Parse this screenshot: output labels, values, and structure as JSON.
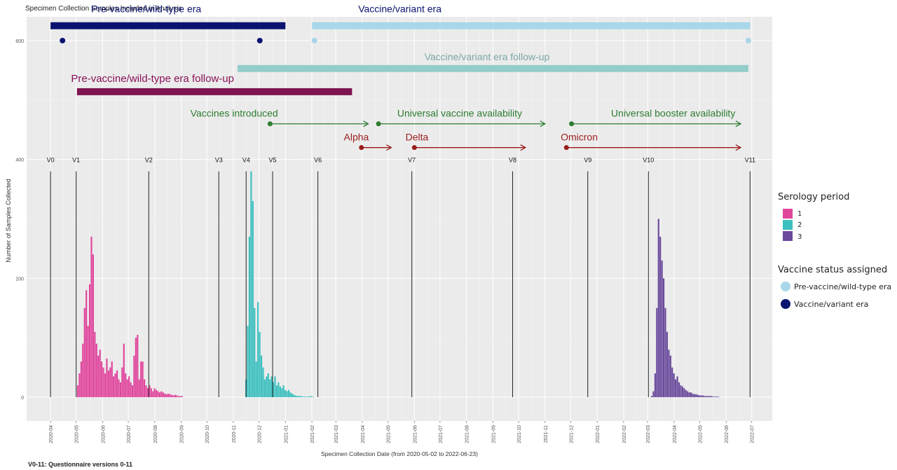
{
  "chart_data": {
    "type": "bar",
    "title": "Specimen Collection Samples Included in Analysis",
    "xlabel": "Specimen Collection Date (from 2020-05-02 to 2022-06-23)",
    "ylabel": "Number of Samples Collected",
    "footnote": "V0-11: Questionnaire versions 0-11",
    "grid": true,
    "ylim": [
      -40,
      640
    ],
    "yticks": [
      0,
      200,
      400,
      600
    ],
    "xlim": [
      "2020-03-04",
      "2022-07-25"
    ],
    "xticks": [
      "2020-04",
      "2020-05",
      "2020-06",
      "2020-07",
      "2020-08",
      "2020-09",
      "2020-10",
      "2020-11",
      "2020-12",
      "2021-01",
      "2021-02",
      "2021-03",
      "2021-04",
      "2021-05",
      "2021-06",
      "2021-07",
      "2021-08",
      "2021-09",
      "2021-10",
      "2021-11",
      "2021-12",
      "2022-01",
      "2022-02",
      "2022-03",
      "2022-04",
      "2022-05",
      "2022-06",
      "2022-07"
    ],
    "legend": {
      "serology_title": "Serology period",
      "serology": [
        {
          "label": "1",
          "color": "#e0459c"
        },
        {
          "label": "2",
          "color": "#3cbfbf"
        },
        {
          "label": "3",
          "color": "#6a4a9c"
        }
      ],
      "vaccine_title": "Vaccine status assigned",
      "vaccine": [
        {
          "label": "Pre-vaccine/wild-type era",
          "color": "#a9d6ea"
        },
        {
          "label": "Vaccine/variant era",
          "color": "#0a1470"
        }
      ],
      "placement": "right"
    },
    "eras": [
      {
        "label": "Pre-vaccine/wild-type era",
        "start": "2020-04-01",
        "end": "2021-01-01",
        "y": 625,
        "color": "#0a1470",
        "label_color": "#0a1470"
      },
      {
        "label": "Vaccine/variant era",
        "start": "2021-02-01",
        "end": "2022-06-29",
        "y": 625,
        "color": "#a9d6ea",
        "label_color": "#0a1470"
      },
      {
        "label": "Vaccine/variant era follow-up",
        "start": "2020-11-06",
        "end": "2022-06-27",
        "y": 553,
        "color": "#93cdca",
        "label_color": "#7aa7a5"
      },
      {
        "label": "Pre-vaccine/wild-type era follow-up",
        "start": "2020-05-02",
        "end": "2021-03-20",
        "y": 514,
        "color": "#7e1452",
        "label_color": "#8a1258"
      }
    ],
    "era_points": [
      {
        "date": "2020-04-15",
        "y": 600,
        "color": "#0a1470"
      },
      {
        "date": "2020-12-02",
        "y": 600,
        "color": "#0a1470"
      },
      {
        "date": "2021-02-04",
        "y": 600,
        "color": "#a9d6ea"
      },
      {
        "date": "2022-06-27",
        "y": 600,
        "color": "#a9d6ea"
      }
    ],
    "milestones": [
      {
        "label": "Vaccines introduced",
        "start": "2020-12-14",
        "end": "2021-04-08",
        "y": 460,
        "color": "#2e7d32",
        "label_color": "#2e7d32"
      },
      {
        "label": "Universal vaccine availability",
        "start": "2021-04-20",
        "end": "2021-11-01",
        "y": 460,
        "color": "#2e7d32",
        "label_color": "#2e7d32"
      },
      {
        "label": "Universal booster availability",
        "start": "2021-12-02",
        "end": "2022-06-18",
        "y": 460,
        "color": "#2e7d32",
        "label_color": "#2e7d32"
      },
      {
        "label": "Alpha",
        "start": "2021-03-31",
        "end": "2021-05-05",
        "y": 420,
        "color": "#9b1c1c",
        "label_color": "#9b1c1c"
      },
      {
        "label": "Delta",
        "start": "2021-06-01",
        "end": "2021-10-09",
        "y": 420,
        "color": "#9b1c1c",
        "label_color": "#9b1c1c"
      },
      {
        "label": "Omicron",
        "start": "2021-11-26",
        "end": "2022-06-18",
        "y": 420,
        "color": "#9b1c1c",
        "label_color": "#9b1c1c"
      }
    ],
    "versions": [
      {
        "label": "V0",
        "date": "2020-04-01"
      },
      {
        "label": "V1",
        "date": "2020-05-01"
      },
      {
        "label": "V2",
        "date": "2020-07-25"
      },
      {
        "label": "V3",
        "date": "2020-10-15"
      },
      {
        "label": "V4",
        "date": "2020-11-16"
      },
      {
        "label": "V5",
        "date": "2020-12-17"
      },
      {
        "label": "V6",
        "date": "2021-02-08"
      },
      {
        "label": "V7",
        "date": "2021-05-29"
      },
      {
        "label": "V8",
        "date": "2021-09-24"
      },
      {
        "label": "V9",
        "date": "2021-12-21"
      },
      {
        "label": "V10",
        "date": "2022-03-02"
      },
      {
        "label": "V11",
        "date": "2022-06-29"
      }
    ],
    "series": [
      {
        "name": "1",
        "color": "#e0459c",
        "start": "2020-05-02",
        "step_days": 2,
        "values": [
          20,
          40,
          60,
          90,
          150,
          180,
          120,
          190,
          270,
          240,
          110,
          90,
          70,
          80,
          60,
          50,
          40,
          65,
          45,
          50,
          60,
          35,
          40,
          45,
          30,
          25,
          50,
          90,
          40,
          30,
          35,
          25,
          20,
          70,
          100,
          105,
          30,
          60,
          60,
          30,
          20,
          15,
          20,
          15,
          10,
          15,
          12,
          10,
          8,
          10,
          8,
          6,
          5,
          6,
          5,
          4,
          3,
          4,
          3,
          2,
          2,
          2
        ]
      },
      {
        "name": "2",
        "color": "#3cbfbf",
        "start": "2020-11-15",
        "step_days": 2,
        "values": [
          30,
          120,
          270,
          380,
          330,
          150,
          60,
          160,
          110,
          70,
          50,
          30,
          35,
          40,
          30,
          35,
          25,
          35,
          20,
          25,
          18,
          15,
          20,
          12,
          10,
          12,
          8,
          6,
          4,
          3,
          2,
          2,
          2,
          1,
          1,
          1,
          1,
          1,
          2,
          1
        ]
      },
      {
        "name": "3",
        "color": "#6a4a9c",
        "start": "2022-03-05",
        "step_days": 2,
        "values": [
          2,
          10,
          40,
          150,
          300,
          270,
          230,
          200,
          150,
          110,
          80,
          70,
          50,
          40,
          30,
          35,
          25,
          20,
          18,
          15,
          12,
          10,
          8,
          8,
          6,
          5,
          5,
          4,
          3,
          3,
          3,
          2,
          2,
          2,
          2,
          2,
          1,
          1,
          1,
          1
        ]
      }
    ]
  }
}
